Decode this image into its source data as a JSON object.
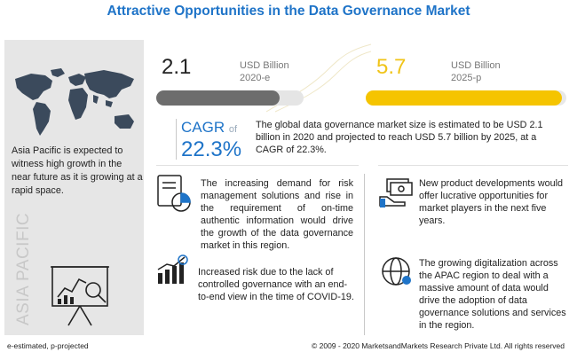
{
  "title": "Attractive Opportunities in the Data Governance Market",
  "region": {
    "note": "Asia Pacific is expected to witness high growth in the near future as it is growing at a rapid space.",
    "vertical_label": "ASIA PACIFIC"
  },
  "market_2020": {
    "value": "2.1",
    "unit": "USD Billion",
    "year": "2020-e",
    "bar_fill": 0.37
  },
  "market_2025": {
    "value": "5.7",
    "unit": "USD Billion",
    "year": "2025-p",
    "bar_fill": 1.0
  },
  "cagr": {
    "label": "CAGR",
    "of": "of",
    "value": "22.3%",
    "summary": "The global data governance market size is estimated to be USD 2.1 billion in 2020 and projected to reach USD 5.7 billion by 2025, at a CAGR of 22.3%."
  },
  "points": [
    {
      "text": "The increasing demand for risk management solutions and rise in the requirement of on-time authentic information would drive the growth of the data governance market in this region."
    },
    {
      "text": "Increased risk due to the lack of controlled governance with an end-to-end view in the time of COVID-19."
    },
    {
      "text": "New product developments would offer lucrative opportunities for market players in the next five years."
    },
    {
      "text": "The growing digitalization across the APAC region to deal with a massive amount of data would drive the adoption of data governance solutions and services in the region."
    }
  ],
  "footer": {
    "legend": "e-estimated, p-projected",
    "copyright": "© 2009 - 2020 MarketsandMarkets Research Private Ltd. All rights reserved"
  },
  "colors": {
    "title": "#1f74c8",
    "accent_yellow": "#f5c400",
    "bar_grey": "#6d6d6d"
  }
}
